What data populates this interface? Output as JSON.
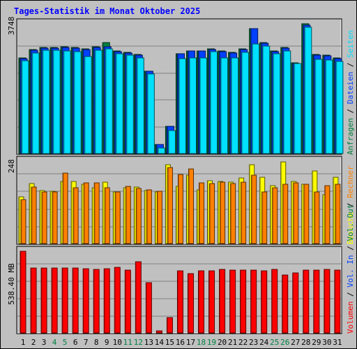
{
  "title": "Tages-Statistik im Monat Oktober 2025",
  "colors": {
    "background": "#c0c0c0",
    "title": "#0000ff",
    "hits": "#008040",
    "files": "#0040ff",
    "pages": "#00e0ff",
    "visits": "#ffff00",
    "sites": "#ff8000",
    "volume": "#ff0000",
    "weekend_day_label": "#008040"
  },
  "chart_data": [
    {
      "type": "bar",
      "panel": "top",
      "y_max_label": "3748",
      "ylim": [
        0,
        3748
      ],
      "grid": true,
      "categories": [
        "1",
        "2",
        "3",
        "4",
        "5",
        "6",
        "7",
        "8",
        "9",
        "10",
        "11",
        "12",
        "13",
        "14",
        "15",
        "16",
        "17",
        "18",
        "19",
        "20",
        "21",
        "22",
        "23",
        "24",
        "25",
        "26",
        "27",
        "28",
        "29",
        "30",
        "31"
      ],
      "series": [
        {
          "name": "Anfragen",
          "color": "#008040",
          "values": [
            2760,
            3010,
            3060,
            3060,
            3080,
            3060,
            3020,
            3080,
            3200,
            2960,
            2920,
            2860,
            2380,
            270,
            790,
            2880,
            2960,
            2960,
            3020,
            2960,
            2920,
            3020,
            3600,
            3200,
            2960,
            3060,
            2620,
            3740,
            2860,
            2840,
            2760
          ]
        },
        {
          "name": "Dateien",
          "color": "#0040ff",
          "values": [
            2740,
            2990,
            3040,
            3040,
            3060,
            3040,
            3000,
            3060,
            3080,
            2940,
            2900,
            2840,
            2370,
            260,
            780,
            2880,
            2960,
            2960,
            3000,
            2940,
            2900,
            3000,
            3600,
            3180,
            2940,
            3040,
            2600,
            3700,
            2840,
            2820,
            2740
          ]
        },
        {
          "name": "Seiten",
          "color": "#00e0ff",
          "values": [
            2680,
            2900,
            2980,
            2980,
            2960,
            2940,
            2800,
            2980,
            3020,
            2880,
            2840,
            2760,
            2300,
            160,
            660,
            2740,
            2760,
            2760,
            2940,
            2760,
            2760,
            2920,
            3160,
            3100,
            2880,
            2960,
            2600,
            3650,
            2720,
            2700,
            2660
          ]
        }
      ]
    },
    {
      "type": "bar",
      "panel": "middle",
      "y_max_label": "248",
      "ylim": [
        0,
        248
      ],
      "grid": true,
      "categories": [
        "1",
        "2",
        "3",
        "4",
        "5",
        "6",
        "7",
        "8",
        "9",
        "10",
        "11",
        "12",
        "13",
        "14",
        "15",
        "16",
        "17",
        "18",
        "19",
        "20",
        "21",
        "22",
        "23",
        "24",
        "25",
        "26",
        "27",
        "28",
        "29",
        "30",
        "31"
      ],
      "series": [
        {
          "name": "Besuche",
          "color": "#ffff00",
          "values": [
            140,
            180,
            160,
            158,
            188,
            188,
            178,
            168,
            185,
            155,
            168,
            170,
            160,
            155,
            238,
            172,
            205,
            162,
            190,
            188,
            185,
            198,
            238,
            200,
            175,
            245,
            188,
            178,
            218,
            148,
            200
          ]
        },
        {
          "name": "Rechner",
          "color": "#ff8000",
          "values": [
            132,
            170,
            155,
            155,
            212,
            168,
            182,
            182,
            168,
            155,
            172,
            165,
            162,
            158,
            230,
            208,
            225,
            182,
            180,
            185,
            180,
            185,
            205,
            155,
            168,
            178,
            182,
            178,
            155,
            175,
            178
          ]
        }
      ]
    },
    {
      "type": "bar",
      "panel": "bottom",
      "y_max_label": "538.40 MB",
      "ylim": [
        0,
        538.4
      ],
      "grid": true,
      "categories": [
        "1",
        "2",
        "3",
        "4",
        "5",
        "6",
        "7",
        "8",
        "9",
        "10",
        "11",
        "12",
        "13",
        "14",
        "15",
        "16",
        "17",
        "18",
        "19",
        "20",
        "21",
        "22",
        "23",
        "24",
        "25",
        "26",
        "27",
        "28",
        "29",
        "30",
        "31"
      ],
      "series": [
        {
          "name": "Volumen",
          "color": "#ff0000",
          "values": [
            538,
            430,
            428,
            428,
            426,
            426,
            422,
            420,
            424,
            432,
            414,
            470,
            330,
            14,
            100,
            408,
            392,
            410,
            410,
            418,
            412,
            412,
            412,
            410,
            420,
            384,
            394,
            416,
            416,
            420,
            414
          ]
        }
      ]
    }
  ],
  "weekend_days": [
    "4",
    "5",
    "11",
    "12",
    "18",
    "19",
    "25",
    "26"
  ],
  "side_legend": {
    "top": [
      {
        "text": "Anfragen",
        "color": "#008040"
      },
      {
        "text": "Dateien",
        "color": "#0040ff"
      },
      {
        "text": "Seiten",
        "color": "#00e0ff"
      }
    ],
    "middle": [
      {
        "text": "Besuche",
        "color": "#ffff00"
      },
      {
        "text": "Rechner",
        "color": "#ff8000"
      }
    ],
    "bottom": [
      {
        "text": "Volumen",
        "color": "#ff0000"
      },
      {
        "text": "Vol. In",
        "color": "#0040ff"
      },
      {
        "text": "Vol. Out",
        "color": "#008040"
      }
    ],
    "separator": "/"
  }
}
